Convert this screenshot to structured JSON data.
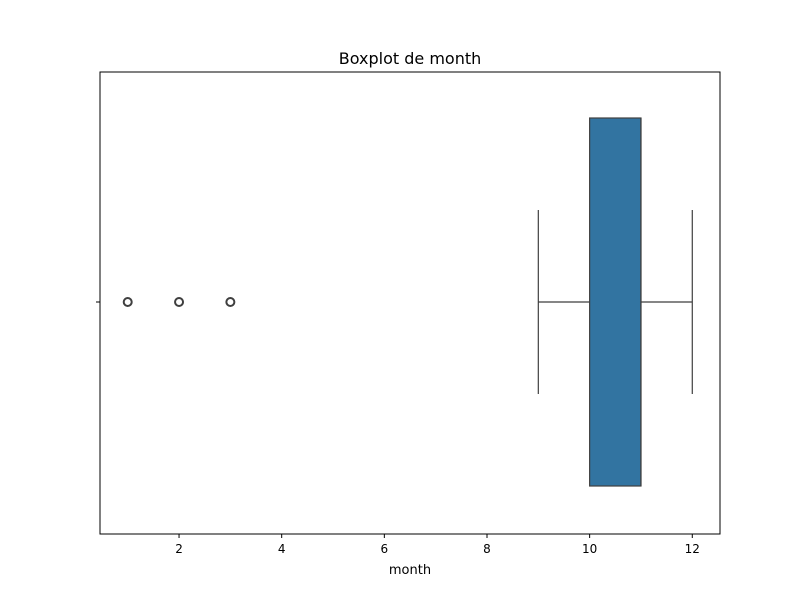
{
  "chart_data": {
    "type": "boxplot",
    "orientation": "horizontal",
    "title": "Boxplot de month",
    "xlabel": "month",
    "ylabel": "",
    "xlim": [
      0.46,
      12.54
    ],
    "x_ticks": [
      2,
      4,
      6,
      8,
      10,
      12
    ],
    "x_tick_labels": [
      "2",
      "4",
      "6",
      "8",
      "10",
      "12"
    ],
    "box": {
      "q1": 10,
      "median": 11,
      "q3": 11,
      "whisker_low": 9,
      "whisker_high": 12
    },
    "outliers": [
      1,
      2,
      3
    ],
    "grid": false,
    "colors": {
      "box_fill": "#3274a1",
      "box_edge": "#3f3f3f",
      "whisker": "#3f3f3f",
      "outlier_edge": "#3f3f3f"
    }
  }
}
